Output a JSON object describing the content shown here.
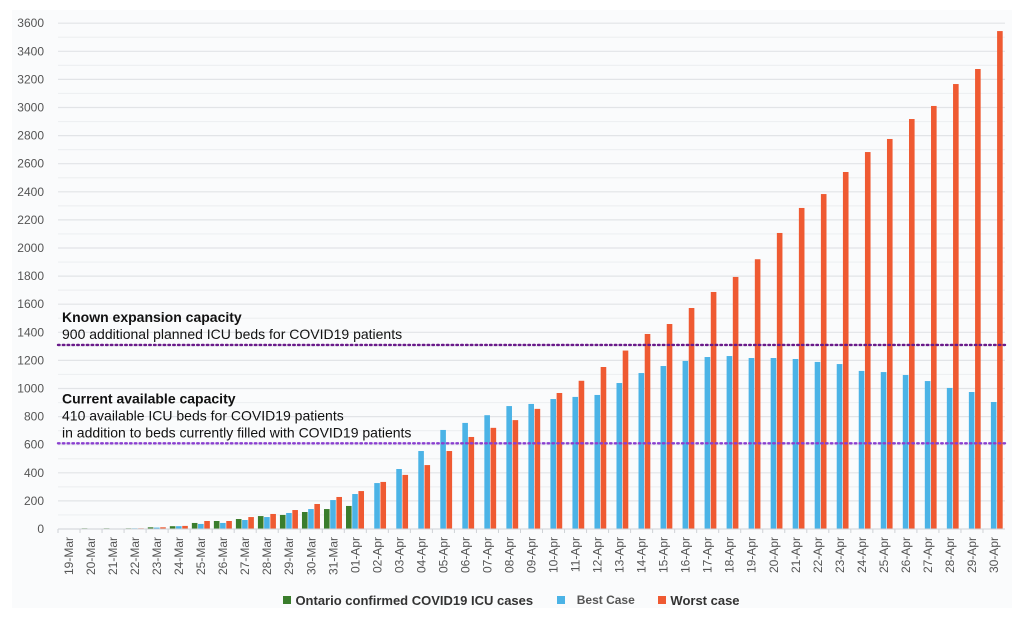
{
  "chart_data": {
    "type": "bar",
    "title": "",
    "xlabel": "",
    "ylabel": "",
    "ylim": [
      0,
      3600
    ],
    "yticks": [
      0,
      200,
      400,
      600,
      800,
      1000,
      1200,
      1400,
      1600,
      1800,
      2000,
      2200,
      2400,
      2600,
      2800,
      3000,
      3200,
      3400,
      3600
    ],
    "ytick_labels": [
      "0",
      "200",
      "400",
      "600",
      "800",
      "1000",
      "1200",
      "1400",
      "1600",
      "1800",
      "2000",
      "2200",
      "2400",
      "2600",
      "2800",
      "3000",
      "3200",
      "3400",
      "3600"
    ],
    "grid": true,
    "legend_position": "bottom",
    "categories": [
      "19-Mar",
      "20-Mar",
      "21-Mar",
      "22-Mar",
      "23-Mar",
      "24-Mar",
      "25-Mar",
      "26-Mar",
      "27-Mar",
      "28-Mar",
      "29-Mar",
      "30-Mar",
      "31-Mar",
      "01-Apr",
      "02-Apr",
      "03-Apr",
      "04-Apr",
      "05-Apr",
      "06-Apr",
      "07-Apr",
      "08-Apr",
      "09-Apr",
      "10-Apr",
      "11-Apr",
      "12-Apr",
      "13-Apr",
      "14-Apr",
      "15-Apr",
      "16-Apr",
      "17-Apr",
      "18-Apr",
      "19-Apr",
      "20-Apr",
      "21-Apr",
      "22-Apr",
      "23-Apr",
      "24-Apr",
      "25-Apr",
      "26-Apr",
      "27-Apr",
      "28-Apr",
      "29-Apr",
      "30-Apr"
    ],
    "series": [
      {
        "name": "Ontario confirmed COVID19 ICU cases",
        "color": "#3a7d2c",
        "values": [
          3,
          5,
          5,
          5,
          12,
          20,
          43,
          57,
          71,
          92,
          100,
          121,
          142,
          164,
          null,
          null,
          null,
          null,
          null,
          null,
          null,
          null,
          null,
          null,
          null,
          null,
          null,
          null,
          null,
          null,
          null,
          null,
          null,
          null,
          null,
          null,
          null,
          null,
          null,
          null,
          null,
          null,
          null
        ]
      },
      {
        "name": "Best Case",
        "color": "#4bb3e6",
        "values": [
          null,
          null,
          null,
          5,
          10,
          20,
          36,
          43,
          64,
          85,
          114,
          142,
          206,
          249,
          327,
          427,
          555,
          705,
          755,
          810,
          875,
          890,
          925,
          940,
          954,
          1039,
          1110,
          1160,
          1196,
          1224,
          1231,
          1217,
          1217,
          1210,
          1189,
          1174,
          1125,
          1117,
          1096,
          1053,
          1004,
          975,
          904
        ]
      },
      {
        "name": "Worst case",
        "color": "#ef5a32",
        "values": [
          null,
          null,
          null,
          5,
          12,
          22,
          57,
          57,
          85,
          107,
          135,
          178,
          228,
          270,
          335,
          385,
          455,
          555,
          655,
          720,
          775,
          855,
          968,
          1055,
          1153,
          1270,
          1388,
          1459,
          1573,
          1687,
          1794,
          1920,
          2107,
          2285,
          2384,
          2541,
          2683,
          2776,
          2918,
          3011,
          3167,
          3274,
          3544
        ]
      }
    ],
    "reference_lines": [
      {
        "name": "Known expansion capacity",
        "value": 1310,
        "color": "#6a1b8a",
        "style": "dotted",
        "label_title": "Known expansion capacity",
        "label_lines": [
          "900 additional planned ICU beds for COVID19 patients"
        ]
      },
      {
        "name": "Current available capacity",
        "value": 610,
        "color": "#8a3fd0",
        "style": "dotted",
        "label_title": "Current available capacity",
        "label_lines": [
          "410 available ICU beds for COVID19 patients",
          "in addition to beds currently filled with COVID19 patients"
        ]
      }
    ]
  },
  "legend": {
    "items": [
      {
        "label": "Ontario confirmed COVID19 ICU cases",
        "color": "#3a7d2c"
      },
      {
        "label": "Best Case",
        "color": "#4bb3e6"
      },
      {
        "label": "Worst case",
        "color": "#ef5a32"
      }
    ]
  }
}
